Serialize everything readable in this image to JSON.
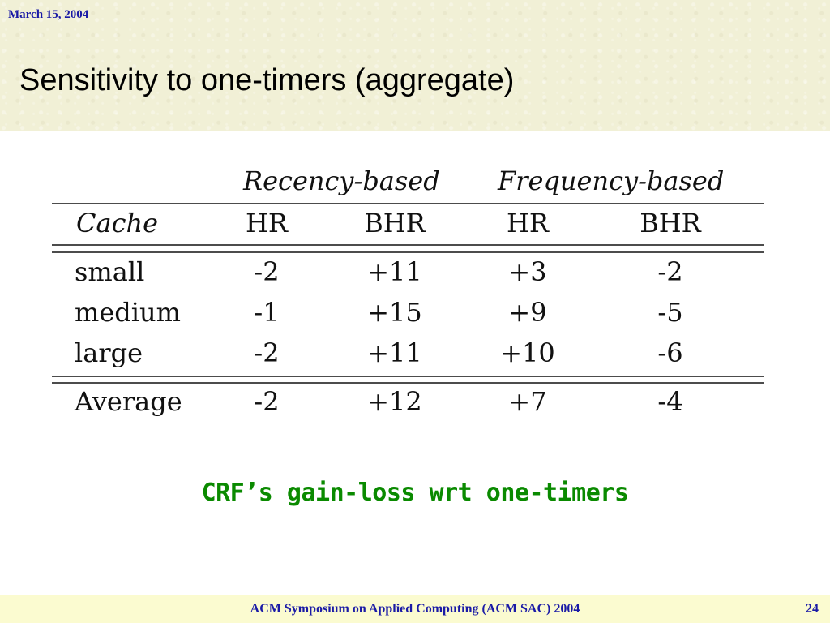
{
  "header": {
    "date": "March 15, 2004",
    "title": "Sensitivity to one-timers (aggregate)"
  },
  "table": {
    "group_headers": [
      "Recency-based",
      "Frequency-based"
    ],
    "column_headers": [
      "Cache",
      "HR",
      "BHR",
      "HR",
      "BHR"
    ],
    "rows": [
      [
        "small",
        "-2",
        "+11",
        "+3",
        "-2"
      ],
      [
        "medium",
        "-1",
        "+15",
        "+9",
        "-5"
      ],
      [
        "large",
        "-2",
        "+11",
        "+10",
        "-6"
      ]
    ],
    "summary_row": [
      "Average",
      "-2",
      "+12",
      "+7",
      "-4"
    ]
  },
  "caption": "CRF’s gain-loss wrt one-timers",
  "footer": {
    "conference": "ACM Symposium on Applied Computing (ACM SAC) 2004",
    "page_number": "24"
  },
  "colors": {
    "header_band": "#f1f0d6",
    "date_text": "#1a1aa6",
    "caption_text": "#0a8a00",
    "footer_band": "#fbfbd0",
    "footer_text": "#1a1aa6"
  }
}
